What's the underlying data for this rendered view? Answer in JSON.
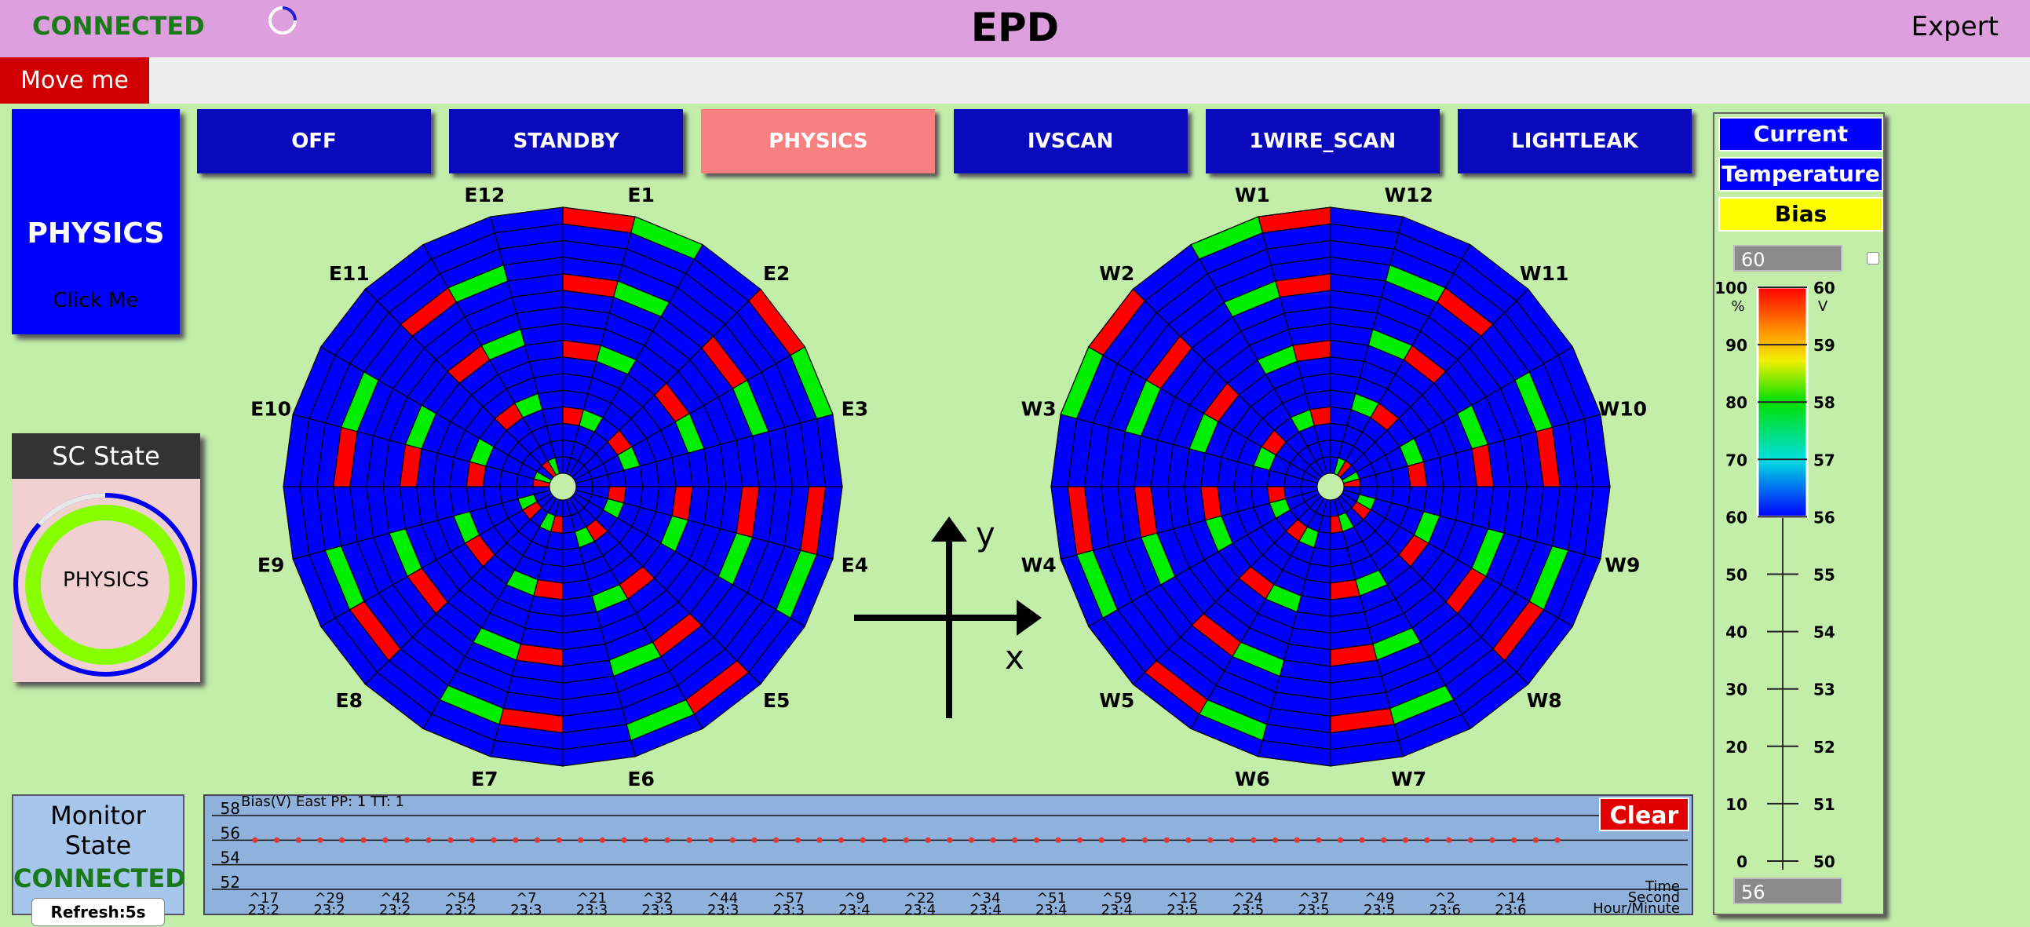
{
  "header": {
    "status": "CONNECTED",
    "title": "EPD",
    "mode": "Expert"
  },
  "move_button": "Move me",
  "physics_button": {
    "label": "PHYSICS",
    "sub": "Click Me"
  },
  "mode_buttons": [
    "OFF",
    "STANDBY",
    "PHYSICS",
    "IVSCAN",
    "1WIRE_SCAN",
    "LIGHTLEAK"
  ],
  "sc_state": {
    "title": "SC State",
    "state": "PHYSICS"
  },
  "monitor": {
    "title": "Monitor State",
    "status": "CONNECTED",
    "refresh": "Refresh:5s"
  },
  "wheels": {
    "east_labels": [
      "E1",
      "E2",
      "E3",
      "E4",
      "E5",
      "E6",
      "E7",
      "E8",
      "E9",
      "E10",
      "E11",
      "E12"
    ],
    "west_labels": [
      "W1",
      "W2",
      "W3",
      "W4",
      "W5",
      "W6",
      "W7",
      "W8",
      "W9",
      "W10",
      "W11",
      "W12"
    ]
  },
  "axes": {
    "x": "x",
    "y": "y"
  },
  "side_panel": {
    "buttons": [
      "Current",
      "Temperature",
      "Bias"
    ],
    "max_input": "60",
    "min_input": "56",
    "percent_unit": "%",
    "volt_unit": "V",
    "percent_ticks": [
      100,
      90,
      80,
      70,
      60,
      50,
      40,
      30,
      20,
      10,
      0
    ],
    "volt_ticks": [
      60,
      59,
      58,
      57,
      56,
      55,
      54,
      53,
      52,
      51,
      50
    ]
  },
  "chart_data": {
    "type": "line",
    "title": "Bias(V) East PP: 1 TT: 1",
    "series": [
      {
        "color": "#e03838",
        "values": [
          56,
          56,
          56,
          56,
          56,
          56,
          56,
          56,
          56,
          56,
          56,
          56,
          56,
          56,
          56,
          56,
          56,
          56,
          56,
          56,
          56,
          56,
          56,
          56,
          56,
          56,
          56,
          56,
          56,
          56,
          56,
          56,
          56,
          56,
          56,
          56,
          56,
          56,
          56,
          56,
          56,
          56,
          56,
          56,
          56,
          56,
          56,
          56,
          56,
          56,
          56,
          56,
          56,
          56,
          56,
          56,
          56,
          56,
          56,
          56,
          56
        ]
      }
    ],
    "ylim": [
      52,
      58
    ],
    "yticks": [
      52,
      54,
      56,
      58
    ],
    "xtick_labels": [
      {
        "second": "^17",
        "time": "23:2"
      },
      {
        "second": "^29",
        "time": "23:2"
      },
      {
        "second": "^42",
        "time": "23:2"
      },
      {
        "second": "^54",
        "time": "23:2"
      },
      {
        "second": "^7",
        "time": "23:3"
      },
      {
        "second": "^21",
        "time": "23:3"
      },
      {
        "second": "^32",
        "time": "23:3"
      },
      {
        "second": "^44",
        "time": "23:3"
      },
      {
        "second": "^57",
        "time": "23:3"
      },
      {
        "second": "^9",
        "time": "23:4"
      },
      {
        "second": "^22",
        "time": "23:4"
      },
      {
        "second": "^34",
        "time": "23:4"
      },
      {
        "second": "^51",
        "time": "23:4"
      },
      {
        "second": "^59",
        "time": "23:4"
      },
      {
        "second": "^12",
        "time": "23:5"
      },
      {
        "second": "^24",
        "time": "23:5"
      },
      {
        "second": "^37",
        "time": "23:5"
      },
      {
        "second": "^49",
        "time": "23:5"
      },
      {
        "second": "^2",
        "time": "23:6"
      },
      {
        "second": "^14",
        "time": "23:6"
      }
    ],
    "x_axis_labels": [
      "Time",
      "Second",
      "Hour/Minute"
    ],
    "clear": "Clear"
  }
}
